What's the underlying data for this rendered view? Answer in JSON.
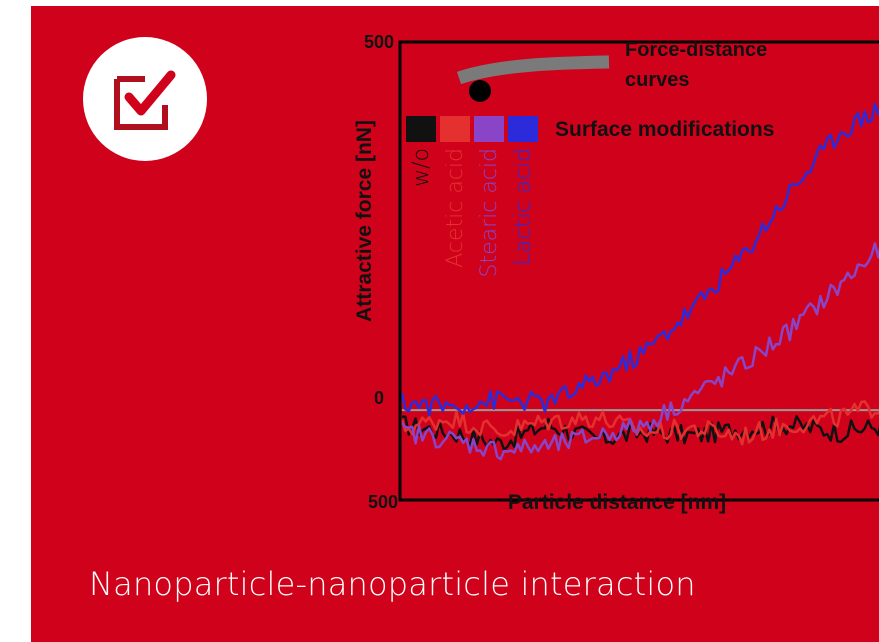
{
  "caption": "Nanoparticle-nanoparticle interaction",
  "icon": "checkbox-check-icon",
  "colors": {
    "background": "#d0021b",
    "w_o": "#111111",
    "acetic_acid": "#e53030",
    "stearic_acid": "#8a44c8",
    "lactic_acid": "#2b2bdc"
  },
  "chart_data": {
    "type": "line",
    "xlabel": "Particle distance [nm]",
    "ylabel": "Attractive force [nN]",
    "y_ticks": [
      "500",
      "0",
      "500"
    ],
    "ylim": [
      -120,
      500
    ],
    "xlim": [
      0,
      100
    ],
    "annotation": {
      "label_line1": "Force-distance",
      "label_line2": "curves"
    },
    "legend_title": "Surface modifications",
    "x": [
      0,
      10,
      20,
      30,
      40,
      50,
      60,
      70,
      80,
      90,
      100
    ],
    "series": [
      {
        "name": "w/o",
        "color": "#111111",
        "values": [
          -20,
          -30,
          -45,
          -20,
          -40,
          -30,
          -35,
          -25,
          -20,
          -30,
          -20
        ]
      },
      {
        "name": "Acetic acid",
        "color": "#e53030",
        "values": [
          -25,
          -10,
          -30,
          -15,
          -10,
          -30,
          -25,
          -35,
          -20,
          -10,
          10
        ]
      },
      {
        "name": "Stearic acid",
        "color": "#8a44c8",
        "values": [
          -30,
          -40,
          -55,
          -50,
          -35,
          -20,
          20,
          60,
          110,
          170,
          230
        ]
      },
      {
        "name": "Lactic acid",
        "color": "#2b2bdc",
        "values": [
          10,
          5,
          15,
          10,
          40,
          80,
          140,
          210,
          300,
          380,
          420
        ]
      }
    ]
  }
}
